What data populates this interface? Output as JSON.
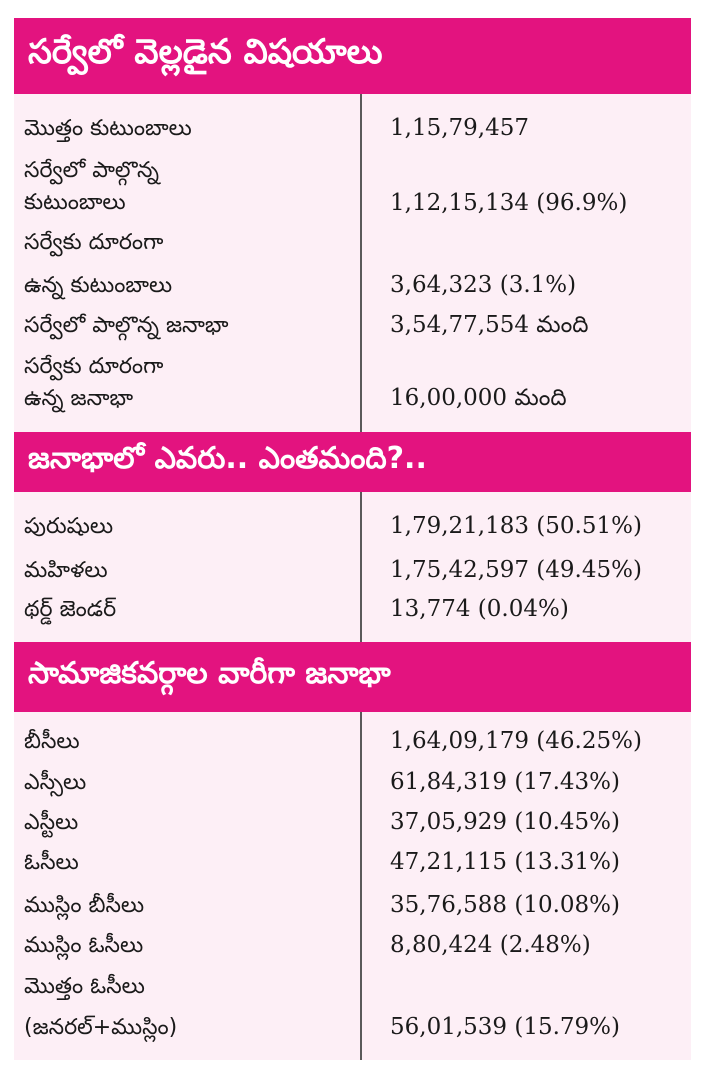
{
  "colors": {
    "header_bg": "#e3137f",
    "card_bg": "#fdeff6",
    "divider": "#5a5a5a",
    "text": "#1a1a1a"
  },
  "sections": [
    {
      "title": "సర్వేలో వెల్లడైన విషయాలు",
      "rows": [
        {
          "label": [
            "మొత్తం కుటుంబాలు"
          ],
          "value": "1,15,79,457"
        },
        {
          "label": [
            "సర్వేలో పాల్గొన్న",
            "కుటుంబాలు"
          ],
          "value": "1,12,15,134 (96.9%)"
        },
        {
          "label": [
            "సర్వేకు దూరంగా",
            "ఉన్న కుటుంబాలు"
          ],
          "value": "3,64,323 (3.1%)"
        },
        {
          "label": [
            "సర్వేలో పాల్గొన్న జనాభా"
          ],
          "value": "3,54,77,554 మంది"
        },
        {
          "label": [
            "సర్వేకు దూరంగా",
            "ఉన్న జనాభా"
          ],
          "value": "16,00,000 మంది"
        }
      ]
    },
    {
      "title": "జనాభాలో ఎవరు.. ఎంతమంది?..",
      "rows": [
        {
          "label": [
            "పురుషులు"
          ],
          "value": "1,79,21,183 (50.51%)"
        },
        {
          "label": [
            "మహిళలు"
          ],
          "value": "1,75,42,597 (49.45%)"
        },
        {
          "label": [
            "థర్డ్ జెండర్"
          ],
          "value": "13,774 (0.04%)"
        }
      ]
    },
    {
      "title": "సామాజికవర్గాల వారీగా జనాభా",
      "rows": [
        {
          "label": [
            "బీసీలు"
          ],
          "value": "1,64,09,179 (46.25%)"
        },
        {
          "label": [
            "ఎస్సీలు"
          ],
          "value": "61,84,319 (17.43%)"
        },
        {
          "label": [
            "ఎస్టీలు"
          ],
          "value": "37,05,929 (10.45%)"
        },
        {
          "label": [
            "ఓసీలు"
          ],
          "value": "47,21,115 (13.31%)"
        },
        {
          "label": [
            "ముస్లిం బీసీలు"
          ],
          "value": "35,76,588 (10.08%)"
        },
        {
          "label": [
            "ముస్లిం ఓసీలు"
          ],
          "value": "8,80,424 (2.48%)"
        },
        {
          "label": [
            "మొత్తం ఓసీలు",
            "(జనరల్+ముస్లిం)"
          ],
          "value": "56,01,539 (15.79%)"
        }
      ]
    }
  ]
}
